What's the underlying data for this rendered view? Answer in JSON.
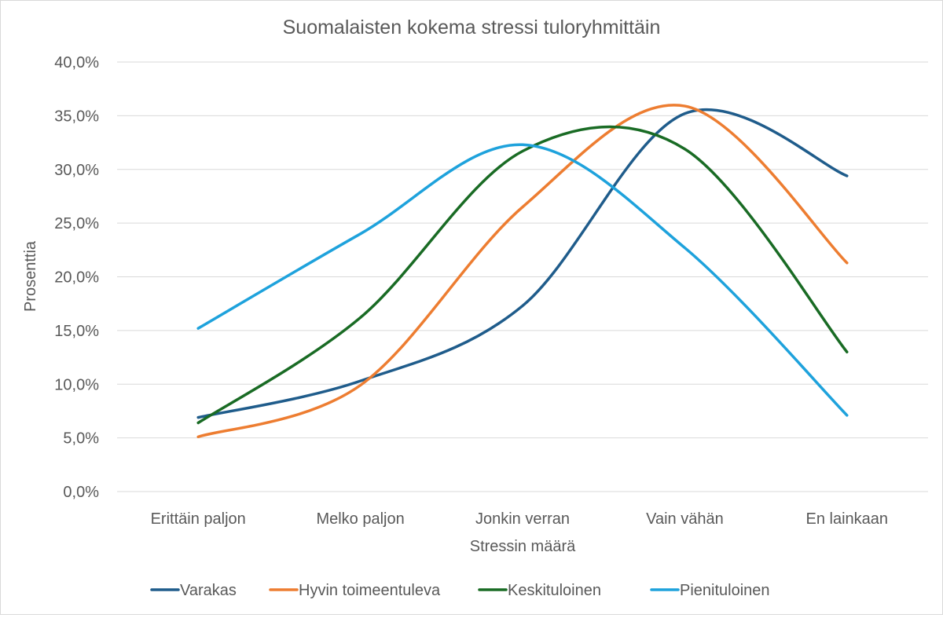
{
  "chart_data": {
    "type": "line",
    "smooth": true,
    "title": "Suomalaisten kokema stressi tuloryhmittäin",
    "xlabel": "Stressin määrä",
    "ylabel": "Prosenttia",
    "categories": [
      "Erittäin paljon",
      "Melko paljon",
      "Jonkin verran",
      "Vain vähän",
      "En lainkaan"
    ],
    "ylim": [
      0,
      40
    ],
    "ytick_values": [
      0,
      5,
      10,
      15,
      20,
      25,
      30,
      35,
      40
    ],
    "ytick_labels": [
      "0,0%",
      "5,0%",
      "10,0%",
      "15,0%",
      "20,0%",
      "25,0%",
      "30,0%",
      "35,0%",
      "40,0%"
    ],
    "grid": true,
    "legend_position": "bottom",
    "series": [
      {
        "name": "Varakas",
        "color": "#1f5c8b",
        "values": [
          6.9,
          10.3,
          17.3,
          35.2,
          29.4
        ]
      },
      {
        "name": "Hyvin toimeentuleva",
        "color": "#ed7d31",
        "values": [
          5.1,
          9.9,
          26.5,
          35.9,
          21.3
        ]
      },
      {
        "name": "Keskituloinen",
        "color": "#196b24",
        "values": [
          6.4,
          16.2,
          31.7,
          31.9,
          13.0
        ]
      },
      {
        "name": "Pienituloinen",
        "color": "#1ea2dc",
        "values": [
          15.2,
          24.0,
          32.3,
          22.7,
          7.1
        ]
      }
    ]
  }
}
